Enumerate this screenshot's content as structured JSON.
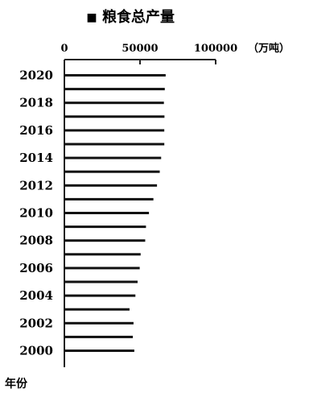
{
  "chart_data": {
    "type": "bar",
    "orientation": "horizontal",
    "legend": {
      "entries": [
        "粮食总产量"
      ],
      "marker": "■",
      "placement": "top-center"
    },
    "x_axis": {
      "position": "top",
      "ticks": [
        0,
        50000,
        100000
      ],
      "tick_labels": [
        "0",
        "50000",
        "100000"
      ],
      "unit_label": "（万吨）",
      "range": [
        0,
        100000
      ]
    },
    "y_axis": {
      "label": "年份",
      "tick_labels": [
        "2020",
        "2018",
        "2016",
        "2014",
        "2012",
        "2010",
        "2008",
        "2006",
        "2004",
        "2002",
        "2000"
      ],
      "order_top_to_bottom": true
    },
    "categories": [
      "2020",
      "2019",
      "2018",
      "2017",
      "2016",
      "2015",
      "2014",
      "2013",
      "2012",
      "2011",
      "2010",
      "2009",
      "2008",
      "2007",
      "2006",
      "2005",
      "2004",
      "2003",
      "2002",
      "2001",
      "2000"
    ],
    "series": [
      {
        "name": "粮食总产量",
        "values": [
          66949,
          66384,
          65789,
          66161,
          66044,
          66060,
          63965,
          63048,
          61223,
          58849,
          55911,
          53941,
          53434,
          50414,
          49804,
          48402,
          46947,
          43070,
          45706,
          45264,
          46218
        ]
      }
    ],
    "grid": false
  }
}
